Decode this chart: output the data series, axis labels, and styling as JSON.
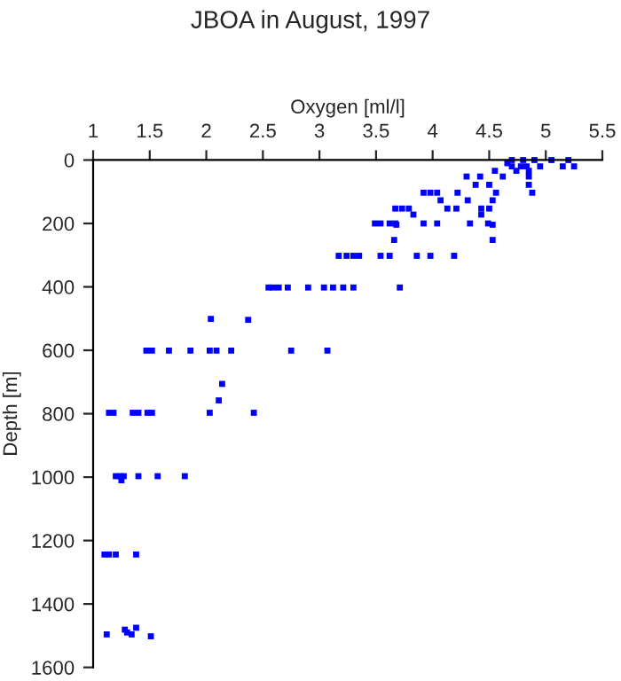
{
  "chart_data": {
    "type": "scatter",
    "title": "JBOA in August, 1997",
    "xlabel": "Oxygen [ml/l]",
    "ylabel": "Depth [m]",
    "xlim": [
      1,
      5.5
    ],
    "xticks": [
      1,
      1.5,
      2,
      2.5,
      3,
      3.5,
      4,
      4.5,
      5,
      5.5
    ],
    "ylim": [
      1600,
      0
    ],
    "yticks": [
      0,
      200,
      400,
      600,
      800,
      1000,
      1200,
      1400,
      1600
    ],
    "marker": "square",
    "grid": false,
    "legend": false,
    "series": [
      {
        "color": "#0000ff",
        "x": [
          4.7,
          4.8,
          4.9,
          5.05,
          5.2,
          4.66,
          4.7,
          4.78,
          4.83,
          4.95,
          5.15,
          5.25,
          4.55,
          4.74,
          4.85,
          4.3,
          4.42,
          4.62,
          4.85,
          4.38,
          4.5,
          4.85,
          3.92,
          3.98,
          4.04,
          4.22,
          4.56,
          4.88,
          4.07,
          4.31,
          4.53,
          3.67,
          3.73,
          3.79,
          4.13,
          4.21,
          4.43,
          4.5,
          3.83,
          4.43,
          3.49,
          3.54,
          3.62,
          3.67,
          3.92,
          4.04,
          4.33,
          4.49,
          3.68,
          4.53,
          3.66,
          4.53,
          3.17,
          3.24,
          3.3,
          3.35,
          3.54,
          3.62,
          3.86,
          3.98,
          4.19,
          2.55,
          2.59,
          2.64,
          2.72,
          2.9,
          3.04,
          3.12,
          3.21,
          3.3,
          3.71,
          2.04,
          2.37,
          1.47,
          1.52,
          1.67,
          1.86,
          2.03,
          2.09,
          2.22,
          2.75,
          3.07,
          2.14,
          2.11,
          1.14,
          1.18,
          1.35,
          1.4,
          1.48,
          1.52,
          2.03,
          2.42,
          1.2,
          1.24,
          1.27,
          1.4,
          1.57,
          1.81,
          1.25,
          1.1,
          1.14,
          1.2,
          1.38,
          1.38,
          1.28,
          1.3,
          1.12,
          1.34,
          1.51
        ],
        "values": [
          0,
          0,
          0,
          0,
          0,
          10,
          20,
          20,
          20,
          20,
          20,
          20,
          34,
          34,
          34,
          52,
          52,
          52,
          52,
          78,
          78,
          78,
          103,
          103,
          103,
          103,
          103,
          103,
          127,
          127,
          127,
          153,
          153,
          153,
          153,
          153,
          153,
          153,
          172,
          172,
          200,
          200,
          200,
          200,
          200,
          200,
          200,
          200,
          204,
          204,
          252,
          252,
          302,
          302,
          302,
          302,
          302,
          302,
          302,
          302,
          302,
          402,
          402,
          402,
          402,
          402,
          402,
          402,
          402,
          402,
          402,
          501,
          504,
          601,
          601,
          601,
          601,
          601,
          601,
          601,
          601,
          601,
          706,
          758,
          797,
          797,
          797,
          797,
          797,
          797,
          797,
          797,
          997,
          997,
          997,
          997,
          997,
          997,
          1010,
          1244,
          1244,
          1244,
          1244,
          1475,
          1481,
          1490,
          1496,
          1496,
          1502
        ]
      }
    ]
  }
}
